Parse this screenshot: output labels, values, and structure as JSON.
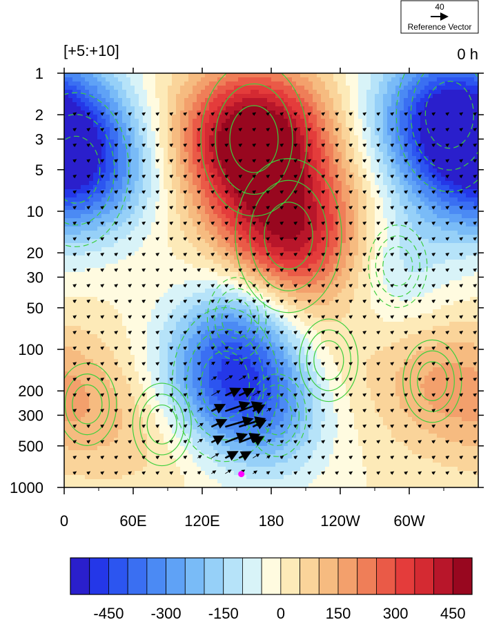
{
  "chart_data": {
    "type": "heatmap",
    "panel_label": "[+5:+10]",
    "time_label": "0 h",
    "reference_vector": {
      "value": "40",
      "label": "Reference Vector"
    },
    "x_ticks": [
      "0",
      "60E",
      "120E",
      "180",
      "120W",
      "60W"
    ],
    "x_tick_values": [
      0,
      60,
      120,
      180,
      240,
      300
    ],
    "xlim": [
      0,
      360
    ],
    "y_ticks": [
      "1",
      "2",
      "3",
      "5",
      "10",
      "20",
      "30",
      "50",
      "100",
      "200",
      "300",
      "500",
      "1000"
    ],
    "y_tick_values": [
      1,
      2,
      3,
      5,
      10,
      20,
      30,
      50,
      100,
      200,
      300,
      500,
      1000
    ],
    "ylim": [
      1,
      1000
    ],
    "y_scale": "log-reversed",
    "colorbar": {
      "levels": [
        -550,
        -500,
        -450,
        -400,
        -350,
        -300,
        -250,
        -200,
        -150,
        -100,
        -50,
        0,
        50,
        100,
        150,
        200,
        250,
        300,
        350,
        400,
        450,
        500,
        550
      ],
      "colors": [
        "#2a1fcc",
        "#2437e8",
        "#2c55f0",
        "#3a6ff2",
        "#4b8af4",
        "#5fa2f6",
        "#79bbf7",
        "#96d0f8",
        "#b6e3f9",
        "#d8f3f8",
        "#fffbe0",
        "#fdeab8",
        "#fad49a",
        "#f6bb80",
        "#f3a06c",
        "#ef7e58",
        "#ea5a47",
        "#e43c3b",
        "#d42a32",
        "#b8162a",
        "#98071f"
      ],
      "tick_labels": [
        "-450",
        "-300",
        "-150",
        "0",
        "150",
        "300",
        "450"
      ],
      "tick_values": [
        -450,
        -300,
        -150,
        0,
        150,
        300,
        450
      ]
    },
    "anomaly_centers": [
      {
        "lon": 165,
        "p": 3,
        "value": 560
      },
      {
        "lon": 195,
        "p": 15,
        "value": 420
      },
      {
        "lon": 10,
        "p": 5,
        "value": -420
      },
      {
        "lon": 335,
        "p": 2,
        "value": -480
      },
      {
        "lon": 140,
        "p": 180,
        "value": -360
      },
      {
        "lon": 150,
        "p": 60,
        "value": -180
      },
      {
        "lon": 185,
        "p": 300,
        "value": -160
      },
      {
        "lon": 320,
        "p": 170,
        "value": 140
      },
      {
        "lon": 20,
        "p": 250,
        "value": 120
      },
      {
        "lon": 85,
        "p": 350,
        "value": 90
      },
      {
        "lon": 230,
        "p": 120,
        "value": 60
      },
      {
        "lon": 290,
        "p": 25,
        "value": -120
      }
    ],
    "marker": {
      "lon": 154,
      "p": 800,
      "color": "#ff00ff"
    },
    "contour_color": "#3ccf3c",
    "vector_color": "#000000"
  }
}
